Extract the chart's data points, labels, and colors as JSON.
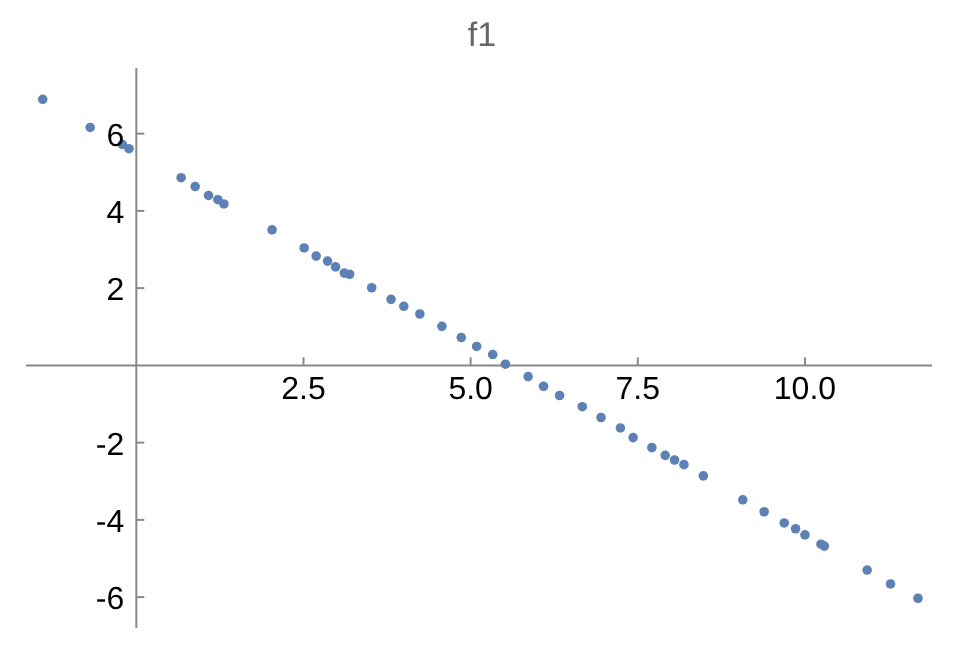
{
  "chart_data": {
    "type": "scatter",
    "title": "f1",
    "color": "#5e81b5",
    "marker": "circle",
    "x": [
      -1.4,
      -0.69,
      -0.21,
      -0.11,
      0.67,
      0.88,
      1.08,
      1.22,
      1.31,
      2.03,
      2.51,
      2.69,
      2.86,
      2.98,
      3.11,
      3.19,
      3.52,
      3.81,
      4.0,
      4.24,
      4.57,
      4.86,
      5.09,
      5.33,
      5.52,
      5.86,
      6.09,
      6.33,
      6.67,
      6.95,
      7.24,
      7.43,
      7.71,
      7.91,
      8.05,
      8.19,
      8.48,
      9.07,
      9.39,
      9.69,
      9.86,
      10.0,
      10.24,
      10.29,
      10.93,
      11.28,
      11.69
    ],
    "values": [
      6.89,
      6.16,
      5.72,
      5.61,
      4.86,
      4.63,
      4.4,
      4.29,
      4.18,
      3.51,
      3.04,
      2.83,
      2.7,
      2.55,
      2.39,
      2.36,
      2.01,
      1.71,
      1.53,
      1.33,
      1.01,
      0.72,
      0.49,
      0.28,
      0.03,
      -0.29,
      -0.54,
      -0.78,
      -1.07,
      -1.35,
      -1.62,
      -1.87,
      -2.13,
      -2.33,
      -2.45,
      -2.57,
      -2.86,
      -3.48,
      -3.79,
      -4.08,
      -4.23,
      -4.39,
      -4.63,
      -4.68,
      -5.3,
      -5.66,
      -6.03
    ],
    "xlim": [
      -1.65,
      11.9
    ],
    "ylim": [
      -6.8,
      7.7
    ],
    "xticks": [
      {
        "value": 2.5,
        "label": "2.5"
      },
      {
        "value": 5,
        "label": "5.0"
      },
      {
        "value": 7.5,
        "label": "7.5"
      },
      {
        "value": 10,
        "label": "10.0"
      }
    ],
    "yticks": [
      -6,
      -4,
      -2,
      2,
      4,
      6
    ]
  }
}
